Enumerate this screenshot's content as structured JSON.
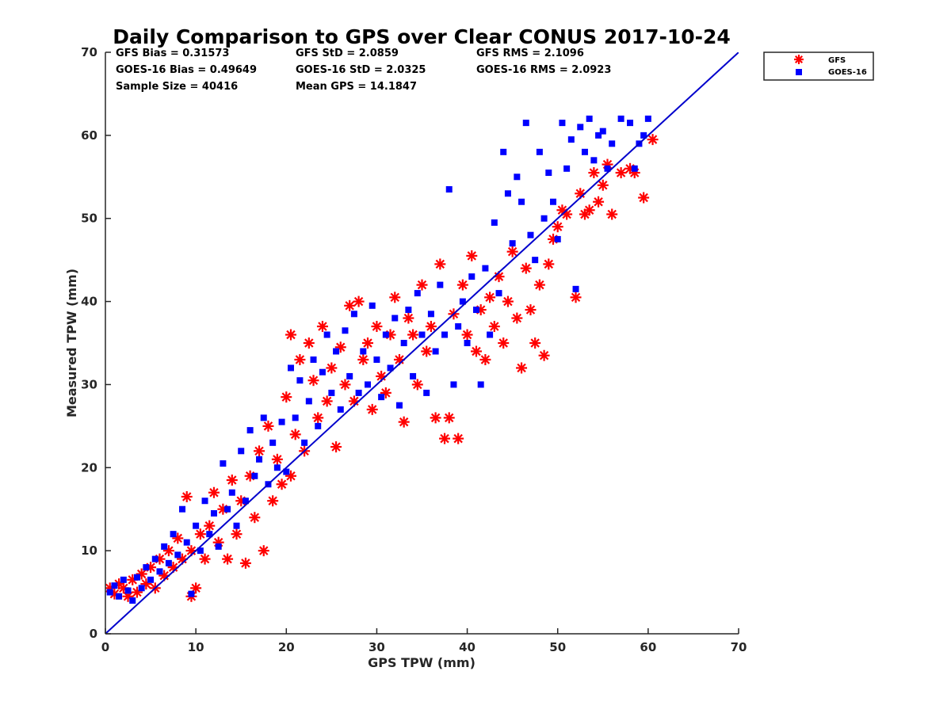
{
  "chart_data": {
    "type": "scatter",
    "title": "Daily Comparison to GPS over Clear CONUS 2017-10-24",
    "xlabel": "GPS TPW (mm)",
    "ylabel": "Measured TPW (mm)",
    "xlim": [
      0,
      70
    ],
    "ylim": [
      0,
      70
    ],
    "xticks": [
      "0",
      "10",
      "20",
      "30",
      "40",
      "50",
      "60",
      "70"
    ],
    "yticks": [
      "0",
      "10",
      "20",
      "30",
      "40",
      "50",
      "60",
      "70"
    ],
    "legend_position": "outside-top-right",
    "stats": [
      "GFS Bias = 0.31573",
      "GFS StD = 2.0859",
      "GFS RMS = 2.1096",
      "GOES-16 Bias = 0.49649",
      "GOES-16 StD = 2.0325",
      "GOES-16 RMS = 2.0923",
      "Sample Size = 40416",
      "Mean GPS = 14.1847"
    ],
    "reference_line": {
      "name": "1:1 line",
      "x": [
        0,
        70
      ],
      "y": [
        0,
        70
      ],
      "color": "#0000cc"
    },
    "series": [
      {
        "name": "GFS",
        "marker": "asterisk",
        "color": "#ff0000",
        "points": [
          [
            0.5,
            5.5
          ],
          [
            1,
            4.8
          ],
          [
            1.5,
            6
          ],
          [
            2,
            5.5
          ],
          [
            2.5,
            4.5
          ],
          [
            3,
            6.5
          ],
          [
            3.5,
            5
          ],
          [
            4,
            7.2
          ],
          [
            4.5,
            6
          ],
          [
            5,
            8
          ],
          [
            5.5,
            5.5
          ],
          [
            6,
            9
          ],
          [
            6.5,
            7
          ],
          [
            7,
            10
          ],
          [
            7.5,
            8
          ],
          [
            8,
            11.5
          ],
          [
            8.5,
            9
          ],
          [
            9,
            16.5
          ],
          [
            9.5,
            4.5
          ],
          [
            9.5,
            10
          ],
          [
            10,
            5.5
          ],
          [
            10.5,
            12
          ],
          [
            11,
            9
          ],
          [
            11.5,
            13
          ],
          [
            12,
            17
          ],
          [
            12.5,
            11
          ],
          [
            13,
            15
          ],
          [
            13.5,
            9
          ],
          [
            14,
            18.5
          ],
          [
            14.5,
            12
          ],
          [
            15,
            16
          ],
          [
            15.5,
            8.5
          ],
          [
            16,
            19
          ],
          [
            16.5,
            14
          ],
          [
            17,
            22
          ],
          [
            17.5,
            10
          ],
          [
            18,
            25
          ],
          [
            18.5,
            16
          ],
          [
            19,
            21
          ],
          [
            19.5,
            18
          ],
          [
            20,
            28.5
          ],
          [
            20.5,
            36
          ],
          [
            20.5,
            19
          ],
          [
            21,
            24
          ],
          [
            21.5,
            33
          ],
          [
            22,
            22
          ],
          [
            22.5,
            35
          ],
          [
            23,
            30.5
          ],
          [
            23.5,
            26
          ],
          [
            24,
            37
          ],
          [
            24.5,
            28
          ],
          [
            25,
            32
          ],
          [
            25.5,
            22.5
          ],
          [
            26,
            34.5
          ],
          [
            26.5,
            30
          ],
          [
            27,
            39.5
          ],
          [
            27.5,
            28
          ],
          [
            28,
            40
          ],
          [
            28.5,
            33
          ],
          [
            29,
            35
          ],
          [
            29.5,
            27
          ],
          [
            30,
            37
          ],
          [
            30.5,
            31
          ],
          [
            31,
            29
          ],
          [
            31.5,
            36
          ],
          [
            32,
            40.5
          ],
          [
            32.5,
            33
          ],
          [
            33,
            25.5
          ],
          [
            33.5,
            38
          ],
          [
            34,
            36
          ],
          [
            34.5,
            30
          ],
          [
            35,
            42
          ],
          [
            35.5,
            34
          ],
          [
            36,
            37
          ],
          [
            36.5,
            26
          ],
          [
            37,
            44.5
          ],
          [
            37.5,
            23.5
          ],
          [
            38,
            26
          ],
          [
            38.5,
            38.5
          ],
          [
            39,
            23.5
          ],
          [
            39.5,
            42
          ],
          [
            40,
            36
          ],
          [
            40.5,
            45.5
          ],
          [
            41,
            34
          ],
          [
            41.5,
            39
          ],
          [
            42,
            33
          ],
          [
            42.5,
            40.5
          ],
          [
            43,
            37
          ],
          [
            43.5,
            43
          ],
          [
            44,
            35
          ],
          [
            44.5,
            40
          ],
          [
            45,
            46
          ],
          [
            45.5,
            38
          ],
          [
            46,
            32
          ],
          [
            46.5,
            44
          ],
          [
            47,
            39
          ],
          [
            47.5,
            35
          ],
          [
            48,
            42
          ],
          [
            48.5,
            33.5
          ],
          [
            49,
            44.5
          ],
          [
            49.5,
            47.5
          ],
          [
            50,
            49
          ],
          [
            50.5,
            51
          ],
          [
            51,
            50.5
          ],
          [
            52,
            40.5
          ],
          [
            52.5,
            53
          ],
          [
            53,
            50.5
          ],
          [
            53.5,
            51
          ],
          [
            54,
            55.5
          ],
          [
            54.5,
            52
          ],
          [
            55,
            54
          ],
          [
            55.5,
            56.5
          ],
          [
            56,
            50.5
          ],
          [
            57,
            55.5
          ],
          [
            58,
            56
          ],
          [
            58.5,
            55.5
          ],
          [
            59.5,
            52.5
          ],
          [
            60.5,
            59.5
          ]
        ]
      },
      {
        "name": "GOES-16",
        "marker": "square",
        "color": "#0000ff",
        "points": [
          [
            0.5,
            5
          ],
          [
            1,
            5.8
          ],
          [
            1.5,
            4.5
          ],
          [
            2,
            6.5
          ],
          [
            2.5,
            5.2
          ],
          [
            3,
            4
          ],
          [
            3.5,
            6.8
          ],
          [
            4,
            5.5
          ],
          [
            4.5,
            8
          ],
          [
            5,
            6.5
          ],
          [
            5.5,
            9
          ],
          [
            6,
            7.5
          ],
          [
            6.5,
            10.5
          ],
          [
            7,
            8.5
          ],
          [
            7.5,
            12
          ],
          [
            8,
            9.5
          ],
          [
            8.5,
            15
          ],
          [
            9,
            11
          ],
          [
            9.5,
            4.8
          ],
          [
            10,
            13
          ],
          [
            10.5,
            10
          ],
          [
            11,
            16
          ],
          [
            11.5,
            12
          ],
          [
            12,
            14.5
          ],
          [
            12.5,
            10.5
          ],
          [
            13,
            20.5
          ],
          [
            13.5,
            15
          ],
          [
            14,
            17
          ],
          [
            14.5,
            13
          ],
          [
            15,
            22
          ],
          [
            15.5,
            16
          ],
          [
            16,
            24.5
          ],
          [
            16.5,
            19
          ],
          [
            17,
            21
          ],
          [
            17.5,
            26
          ],
          [
            18,
            18
          ],
          [
            18.5,
            23
          ],
          [
            19,
            20
          ],
          [
            19.5,
            25.5
          ],
          [
            20,
            19.5
          ],
          [
            20.5,
            32
          ],
          [
            21,
            26
          ],
          [
            21.5,
            30.5
          ],
          [
            22,
            23
          ],
          [
            22.5,
            28
          ],
          [
            23,
            33
          ],
          [
            23.5,
            25
          ],
          [
            24,
            31.5
          ],
          [
            24.5,
            36
          ],
          [
            25,
            29
          ],
          [
            25.5,
            34
          ],
          [
            26,
            27
          ],
          [
            26.5,
            36.5
          ],
          [
            27,
            31
          ],
          [
            27.5,
            38.5
          ],
          [
            28,
            29
          ],
          [
            28.5,
            34
          ],
          [
            29,
            30
          ],
          [
            29.5,
            39.5
          ],
          [
            30,
            33
          ],
          [
            30.5,
            28.5
          ],
          [
            31,
            36
          ],
          [
            31.5,
            32
          ],
          [
            32,
            38
          ],
          [
            32.5,
            27.5
          ],
          [
            33,
            35
          ],
          [
            33.5,
            39
          ],
          [
            34,
            31
          ],
          [
            34.5,
            41
          ],
          [
            35,
            36
          ],
          [
            35.5,
            29
          ],
          [
            36,
            38.5
          ],
          [
            36.5,
            34
          ],
          [
            37,
            42
          ],
          [
            37.5,
            36
          ],
          [
            38,
            53.5
          ],
          [
            38.5,
            30
          ],
          [
            39,
            37
          ],
          [
            39.5,
            40
          ],
          [
            40,
            35
          ],
          [
            40.5,
            43
          ],
          [
            41,
            39
          ],
          [
            41.5,
            30
          ],
          [
            42,
            44
          ],
          [
            42.5,
            36
          ],
          [
            43,
            49.5
          ],
          [
            43.5,
            41
          ],
          [
            44,
            58
          ],
          [
            44.5,
            53
          ],
          [
            45,
            47
          ],
          [
            45.5,
            55
          ],
          [
            46,
            52
          ],
          [
            46.5,
            61.5
          ],
          [
            47,
            48
          ],
          [
            47.5,
            45
          ],
          [
            48,
            58
          ],
          [
            48.5,
            50
          ],
          [
            49,
            55.5
          ],
          [
            49.5,
            52
          ],
          [
            50,
            47.5
          ],
          [
            50.5,
            61.5
          ],
          [
            51,
            56
          ],
          [
            51.5,
            59.5
          ],
          [
            52,
            41.5
          ],
          [
            52.5,
            61
          ],
          [
            53,
            58
          ],
          [
            53.5,
            62
          ],
          [
            54,
            57
          ],
          [
            54.5,
            60
          ],
          [
            55,
            60.5
          ],
          [
            55.5,
            56
          ],
          [
            56,
            59
          ],
          [
            57,
            62
          ],
          [
            58,
            61.5
          ],
          [
            58.5,
            56
          ],
          [
            59,
            59
          ],
          [
            59.5,
            60
          ],
          [
            60,
            62
          ]
        ]
      }
    ]
  }
}
